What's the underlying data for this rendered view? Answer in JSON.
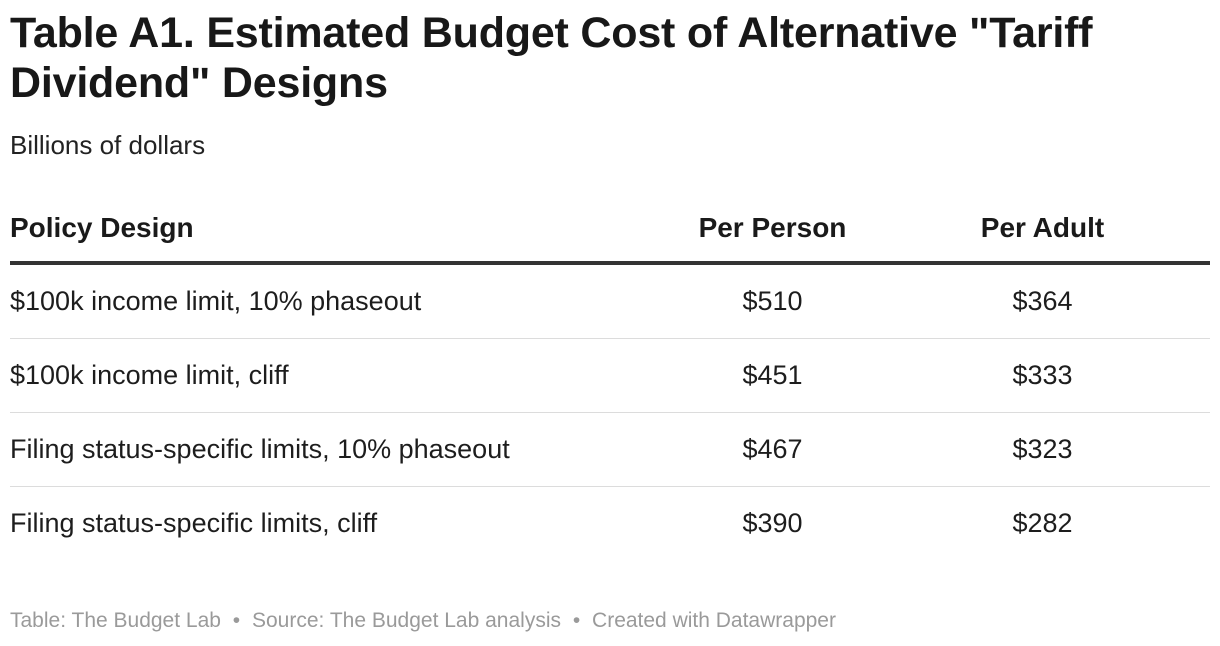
{
  "chart_data": {
    "type": "table",
    "title": "Table A1. Estimated Budget Cost of Alternative \"Tariff Dividend\" Designs",
    "subtitle": "Billions of dollars",
    "columns": [
      "Policy Design",
      "Per Person",
      "Per Adult"
    ],
    "rows": [
      {
        "policy": "$100k income limit, 10% phaseout",
        "per_person": "$510",
        "per_adult": "$364"
      },
      {
        "policy": "$100k income limit, cliff",
        "per_person": "$451",
        "per_adult": "$333"
      },
      {
        "policy": "Filing status-specific limits, 10% phaseout",
        "per_person": "$467",
        "per_adult": "$323"
      },
      {
        "policy": "Filing status-specific limits, cliff",
        "per_person": "$390",
        "per_adult": "$282"
      }
    ]
  },
  "footer": {
    "table_credit": "Table: The Budget Lab",
    "source": "Source: The Budget Lab analysis",
    "created_with": "Created with Datawrapper",
    "separator": "•"
  }
}
